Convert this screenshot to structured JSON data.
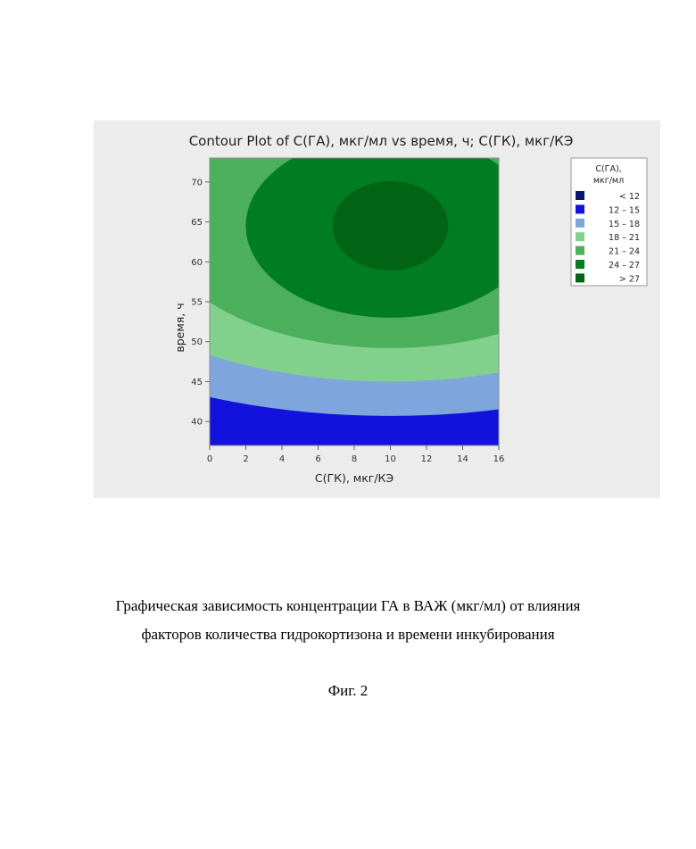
{
  "chart_data": {
    "type": "contour",
    "title": "Contour Plot of С(ГА), мкг/мл vs время, ч; С(ГК), мкг/КЭ",
    "xlabel": "С(ГК), мкг/КЭ",
    "ylabel": "время, ч",
    "xlim": [
      0,
      16
    ],
    "ylim": [
      37,
      73
    ],
    "xticks": [
      0,
      2,
      4,
      6,
      8,
      10,
      12,
      14,
      16
    ],
    "yticks": [
      40,
      45,
      50,
      55,
      60,
      65,
      70
    ],
    "maximum": {
      "x": 10,
      "y": 64.5
    },
    "legend": {
      "title_line1": "С(ГА),",
      "title_line2": "мкг/мл",
      "placement": "right",
      "entries": [
        {
          "range": "< 12",
          "color": "#0a1670"
        },
        {
          "range": "12 – 15",
          "color": "#1212dc"
        },
        {
          "range": "15 – 18",
          "color": "#7ea6dc"
        },
        {
          "range": "18 – 21",
          "color": "#82d08e"
        },
        {
          "range": "21 – 24",
          "color": "#4caf5c"
        },
        {
          "range": "24 – 27",
          "color": "#007d20"
        },
        {
          "range": "> 27",
          "color": "#006415"
        }
      ]
    },
    "bands": [
      {
        "level": 12,
        "radius_x": 28.5,
        "radius_y": 30.0,
        "color": "#1212dc"
      },
      {
        "level": 15,
        "radius_x": 23.0,
        "radius_y": 23.8,
        "color": "#7ea6dc"
      },
      {
        "level": 18,
        "radius_x": 17.9,
        "radius_y": 19.5,
        "color": "#82d08e"
      },
      {
        "level": 21,
        "radius_x": 12.8,
        "radius_y": 15.3,
        "color": "#4caf5c"
      },
      {
        "level": 24,
        "radius_x": 8.0,
        "radius_y": 11.5,
        "color": "#007d20"
      },
      {
        "level": 27,
        "radius_x": 3.2,
        "radius_y": 5.6,
        "color": "#006415"
      }
    ],
    "background_band_color": "#0a1670"
  },
  "caption": {
    "line1": "Графическая зависимость концентрации ГА в ВАЖ (мкг/мл) от влияния",
    "line2": "факторов количества гидрокортизона и времени инкубирования"
  },
  "figure_number": "Фиг. 2"
}
